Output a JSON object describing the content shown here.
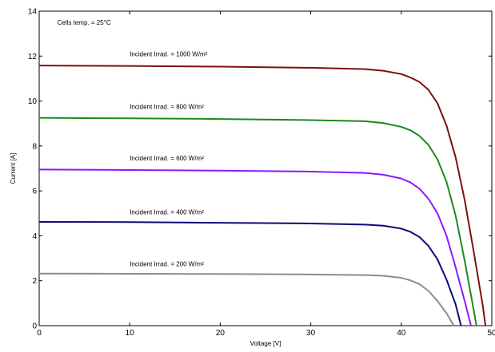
{
  "chart_data": {
    "type": "line",
    "title": "",
    "xlabel": "Voltage [V]",
    "ylabel": "Current  [A]",
    "xlim": [
      0,
      50
    ],
    "ylim": [
      0,
      14
    ],
    "x_ticks": [
      0,
      10,
      20,
      30,
      40,
      50
    ],
    "y_ticks": [
      0,
      2,
      4,
      6,
      8,
      10,
      12,
      14
    ],
    "grid": false,
    "annotations": [
      {
        "text": "Cells temp. = 25°C",
        "x": 2,
        "y": 13.4
      }
    ],
    "series": [
      {
        "name": "Incident Irrad. = 1000 W/m²",
        "color": "#7b0f0f",
        "label_pos": {
          "x": 10,
          "y": 12.0
        },
        "points": [
          [
            0,
            11.58
          ],
          [
            10,
            11.56
          ],
          [
            20,
            11.53
          ],
          [
            30,
            11.48
          ],
          [
            36,
            11.42
          ],
          [
            38,
            11.35
          ],
          [
            40,
            11.2
          ],
          [
            41,
            11.05
          ],
          [
            42,
            10.85
          ],
          [
            43,
            10.5
          ],
          [
            44,
            9.9
          ],
          [
            45,
            8.9
          ],
          [
            46,
            7.5
          ],
          [
            47,
            5.6
          ],
          [
            48,
            3.3
          ],
          [
            49,
            0.9
          ],
          [
            49.3,
            0
          ]
        ]
      },
      {
        "name": "Incident Irrad. = 800 W/m²",
        "color": "#1a8a1a",
        "label_pos": {
          "x": 10,
          "y": 9.65
        },
        "points": [
          [
            0,
            9.25
          ],
          [
            10,
            9.23
          ],
          [
            20,
            9.2
          ],
          [
            30,
            9.15
          ],
          [
            36,
            9.1
          ],
          [
            38,
            9.02
          ],
          [
            40,
            8.85
          ],
          [
            41,
            8.7
          ],
          [
            42,
            8.45
          ],
          [
            43,
            8.05
          ],
          [
            44,
            7.4
          ],
          [
            45,
            6.4
          ],
          [
            46,
            4.9
          ],
          [
            47,
            2.9
          ],
          [
            48,
            0.7
          ],
          [
            48.3,
            0
          ]
        ]
      },
      {
        "name": "Incident Irrad. = 600 W/m²",
        "color": "#8a1aff",
        "label_pos": {
          "x": 10,
          "y": 7.35
        },
        "points": [
          [
            0,
            6.95
          ],
          [
            10,
            6.93
          ],
          [
            20,
            6.9
          ],
          [
            30,
            6.86
          ],
          [
            36,
            6.8
          ],
          [
            38,
            6.72
          ],
          [
            40,
            6.55
          ],
          [
            41,
            6.38
          ],
          [
            42,
            6.1
          ],
          [
            43,
            5.65
          ],
          [
            44,
            5.0
          ],
          [
            45,
            4.0
          ],
          [
            46,
            2.6
          ],
          [
            47,
            1.1
          ],
          [
            47.7,
            0
          ]
        ]
      },
      {
        "name": "Incident Irrad. = 400 W/m²",
        "color": "#0a0a7a",
        "label_pos": {
          "x": 10,
          "y": 4.95
        },
        "points": [
          [
            0,
            4.62
          ],
          [
            10,
            4.61
          ],
          [
            20,
            4.58
          ],
          [
            30,
            4.55
          ],
          [
            36,
            4.5
          ],
          [
            38,
            4.45
          ],
          [
            40,
            4.32
          ],
          [
            41,
            4.18
          ],
          [
            42,
            3.95
          ],
          [
            43,
            3.55
          ],
          [
            44,
            2.95
          ],
          [
            45,
            2.05
          ],
          [
            46,
            0.95
          ],
          [
            46.6,
            0
          ]
        ]
      },
      {
        "name": "Incident Irrad. = 200 W/m²",
        "color": "#8c8c8c",
        "label_pos": {
          "x": 10,
          "y": 2.65
        },
        "points": [
          [
            0,
            2.32
          ],
          [
            10,
            2.31
          ],
          [
            20,
            2.3
          ],
          [
            30,
            2.28
          ],
          [
            36,
            2.25
          ],
          [
            38,
            2.22
          ],
          [
            40,
            2.13
          ],
          [
            41,
            2.02
          ],
          [
            42,
            1.85
          ],
          [
            43,
            1.55
          ],
          [
            44,
            1.1
          ],
          [
            45,
            0.55
          ],
          [
            45.8,
            0
          ]
        ]
      }
    ]
  }
}
